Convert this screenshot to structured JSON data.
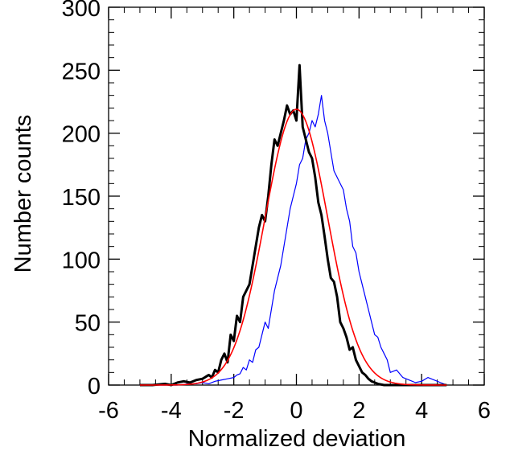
{
  "chart_data": {
    "type": "line",
    "title": "",
    "xlabel": "Normalized deviation",
    "ylabel": "Number counts",
    "xlim": [
      -6,
      6
    ],
    "ylim": [
      0,
      300
    ],
    "xticks": [
      -6,
      -4,
      -2,
      0,
      2,
      4,
      6
    ],
    "xtick_labels": [
      "-6",
      "-4",
      "-2",
      "0",
      "2",
      "4",
      "6"
    ],
    "yticks": [
      0,
      50,
      100,
      150,
      200,
      250,
      300
    ],
    "ytick_labels": [
      "0",
      "50",
      "100",
      "150",
      "200",
      "250",
      "300"
    ],
    "grid": false,
    "legend": "none",
    "series": [
      {
        "color": "#0000ff",
        "style": "thin",
        "x": [
          -5.0,
          -4.6,
          -4.2,
          -3.8,
          -3.4,
          -3.2,
          -3.0,
          -2.8,
          -2.6,
          -2.4,
          -2.2,
          -2.0,
          -1.9,
          -1.8,
          -1.7,
          -1.6,
          -1.5,
          -1.4,
          -1.3,
          -1.2,
          -1.1,
          -1.0,
          -0.9,
          -0.8,
          -0.7,
          -0.6,
          -0.5,
          -0.4,
          -0.3,
          -0.2,
          -0.1,
          0.0,
          0.1,
          0.2,
          0.3,
          0.4,
          0.5,
          0.6,
          0.7,
          0.8,
          0.9,
          1.0,
          1.1,
          1.2,
          1.3,
          1.4,
          1.5,
          1.6,
          1.7,
          1.8,
          1.9,
          2.0,
          2.1,
          2.2,
          2.3,
          2.4,
          2.5,
          2.6,
          2.7,
          2.8,
          2.9,
          3.0,
          3.2,
          3.4,
          3.6,
          3.8,
          4.0,
          4.2,
          4.4,
          4.6,
          4.8
        ],
        "y": [
          0,
          0,
          0,
          0,
          1,
          1,
          2,
          1,
          3,
          4,
          5,
          6,
          8,
          9,
          14,
          12,
          20,
          18,
          28,
          30,
          40,
          50,
          45,
          60,
          75,
          85,
          95,
          110,
          125,
          140,
          150,
          160,
          175,
          180,
          195,
          200,
          210,
          205,
          215,
          230,
          210,
          200,
          185,
          170,
          165,
          160,
          155,
          140,
          130,
          110,
          105,
          90,
          80,
          70,
          60,
          50,
          40,
          38,
          30,
          25,
          20,
          10,
          12,
          6,
          4,
          2,
          3,
          6,
          4,
          2,
          0
        ]
      },
      {
        "color": "#000000",
        "style": "thick",
        "x": [
          -5.0,
          -4.6,
          -4.2,
          -4.0,
          -3.8,
          -3.6,
          -3.4,
          -3.2,
          -3.0,
          -2.8,
          -2.7,
          -2.6,
          -2.5,
          -2.4,
          -2.3,
          -2.2,
          -2.1,
          -2.0,
          -1.9,
          -1.8,
          -1.7,
          -1.6,
          -1.5,
          -1.4,
          -1.3,
          -1.2,
          -1.1,
          -1.0,
          -0.9,
          -0.8,
          -0.7,
          -0.6,
          -0.5,
          -0.4,
          -0.3,
          -0.2,
          -0.1,
          0.0,
          0.1,
          0.2,
          0.3,
          0.4,
          0.5,
          0.6,
          0.7,
          0.8,
          0.9,
          1.0,
          1.1,
          1.2,
          1.3,
          1.4,
          1.5,
          1.6,
          1.7,
          1.8,
          1.9,
          2.0,
          2.1,
          2.2,
          2.3,
          2.4,
          2.5,
          2.6,
          2.8,
          3.0,
          3.2,
          3.4,
          3.6,
          3.8,
          4.0,
          4.4,
          4.8
        ],
        "y": [
          0,
          0,
          1,
          0,
          2,
          3,
          2,
          4,
          5,
          8,
          6,
          12,
          10,
          20,
          25,
          18,
          40,
          35,
          55,
          50,
          70,
          75,
          80,
          95,
          110,
          125,
          135,
          130,
          150,
          175,
          195,
          190,
          200,
          210,
          222,
          215,
          218,
          210,
          254,
          205,
          195,
          185,
          180,
          165,
          145,
          135,
          118,
          100,
          85,
          82,
          70,
          50,
          45,
          38,
          28,
          30,
          20,
          15,
          10,
          8,
          5,
          3,
          2,
          1,
          0,
          0,
          0,
          0,
          0,
          0,
          0,
          0,
          0
        ]
      },
      {
        "color": "#ff0000",
        "style": "fit",
        "fit": {
          "kind": "gaussian",
          "amplitude": 219,
          "mean": 0.0,
          "sigma": 1.0
        },
        "x": [
          -5.0,
          -4.5,
          -4.0,
          -3.5,
          -3.0,
          -2.5,
          -2.0,
          -1.75,
          -1.5,
          -1.25,
          -1.0,
          -0.75,
          -0.5,
          -0.25,
          0.0,
          0.25,
          0.5,
          0.75,
          1.0,
          1.25,
          1.5,
          1.75,
          2.0,
          2.5,
          3.0,
          3.5,
          4.0,
          4.5,
          4.8
        ],
        "y": [
          0,
          0,
          0.1,
          0.5,
          2.4,
          9.6,
          29.6,
          47.0,
          71.2,
          100.1,
          132.8,
          165.8,
          193.3,
          212.3,
          219.0,
          212.3,
          193.3,
          165.8,
          132.8,
          100.1,
          71.2,
          47.0,
          29.6,
          9.6,
          2.4,
          0.5,
          0.1,
          0,
          0
        ]
      }
    ]
  }
}
